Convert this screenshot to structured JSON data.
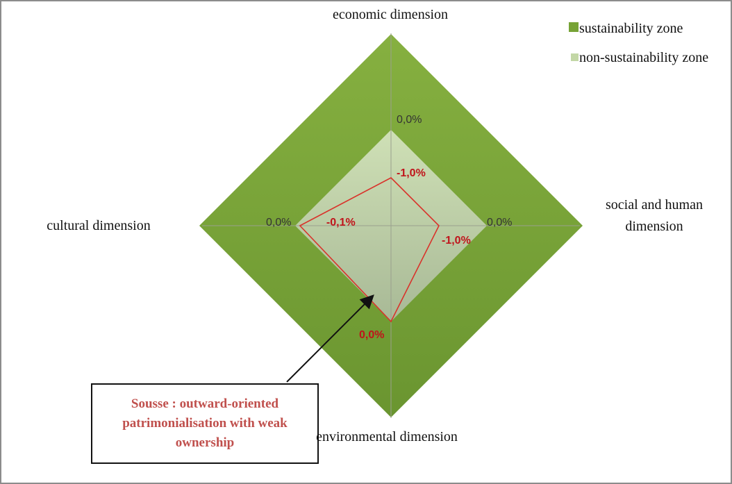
{
  "chart_data": {
    "type": "radar",
    "categories": [
      "economic dimension",
      "social and human dimension",
      "environmental dimension",
      "cultural dimension"
    ],
    "rlim": [
      -2,
      2
    ],
    "series": [
      {
        "name": "sustainability zone",
        "color": "#77a336",
        "values": [
          2,
          2,
          2,
          2
        ]
      },
      {
        "name": "non-sustainability zone",
        "color": "#c3d7a6",
        "values": [
          0,
          0,
          0,
          0
        ],
        "value_labels": [
          "0,0%",
          "0,0%",
          null,
          "0,0%"
        ]
      },
      {
        "color": "#d9332b",
        "values": [
          -1,
          -1,
          0,
          -0.1
        ],
        "value_labels": [
          "-1,0%",
          "-1,0%",
          "0,0%",
          "-0,1%"
        ]
      }
    ],
    "annotation": "Sousse : outward-oriented patrimonialisation with weak ownership"
  }
}
